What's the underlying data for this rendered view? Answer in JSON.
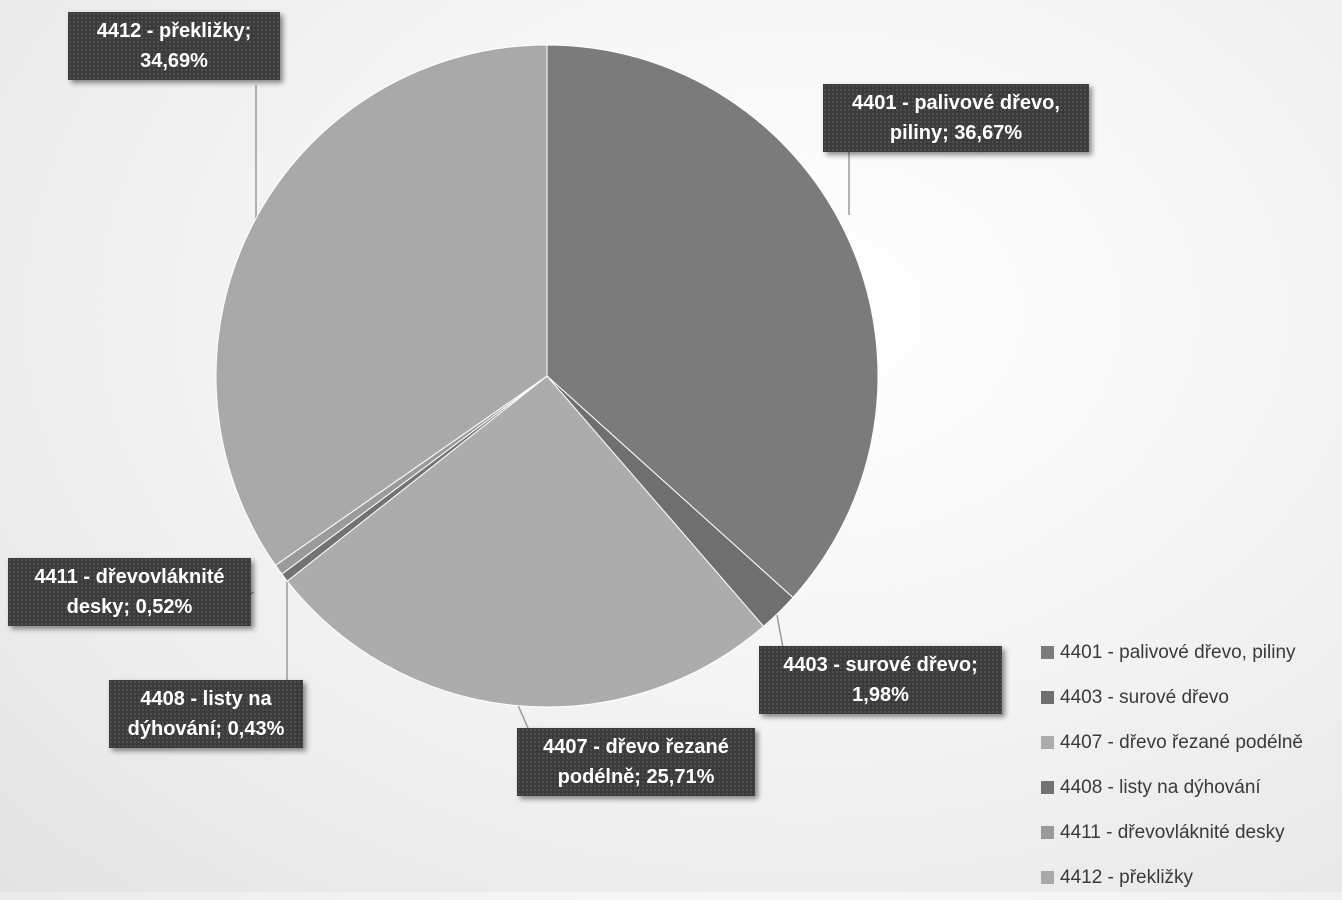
{
  "chart_data": {
    "type": "pie",
    "title": "",
    "slices": [
      {
        "code": "4401",
        "name": "4401 - palivové dřevo, piliny",
        "value": 36.67,
        "color": "#7b7b7b",
        "label_line1": "4401 - palivové dřevo,",
        "label_line2": "piliny; 36,67%"
      },
      {
        "code": "4403",
        "name": "4403 - surové dřevo",
        "value": 1.98,
        "color": "#6f6f6f",
        "label_line1": "4403 - surové dřevo;",
        "label_line2": "1,98%"
      },
      {
        "code": "4407",
        "name": "4407 - dřevo řezané podélně",
        "value": 25.71,
        "color": "#acacac",
        "label_line1": "4407 - dřevo řezané",
        "label_line2": "podélně; 25,71%"
      },
      {
        "code": "4408",
        "name": "4408 - listy na dýhování",
        "value": 0.43,
        "color": "#727272",
        "label_line1": "4408 - listy na",
        "label_line2": "dýhování; 0,43%"
      },
      {
        "code": "4411",
        "name": "4411 - dřevovláknité desky",
        "value": 0.52,
        "color": "#9a9a9a",
        "label_line1": "4411 - dřevovláknité",
        "label_line2": "desky; 0,52%"
      },
      {
        "code": "4412",
        "name": "4412 - překližky",
        "value": 34.69,
        "color": "#a9a9a9",
        "label_line1": "4412 - překližky;",
        "label_line2": "34,69%"
      }
    ],
    "legend_position": "bottom-right"
  }
}
